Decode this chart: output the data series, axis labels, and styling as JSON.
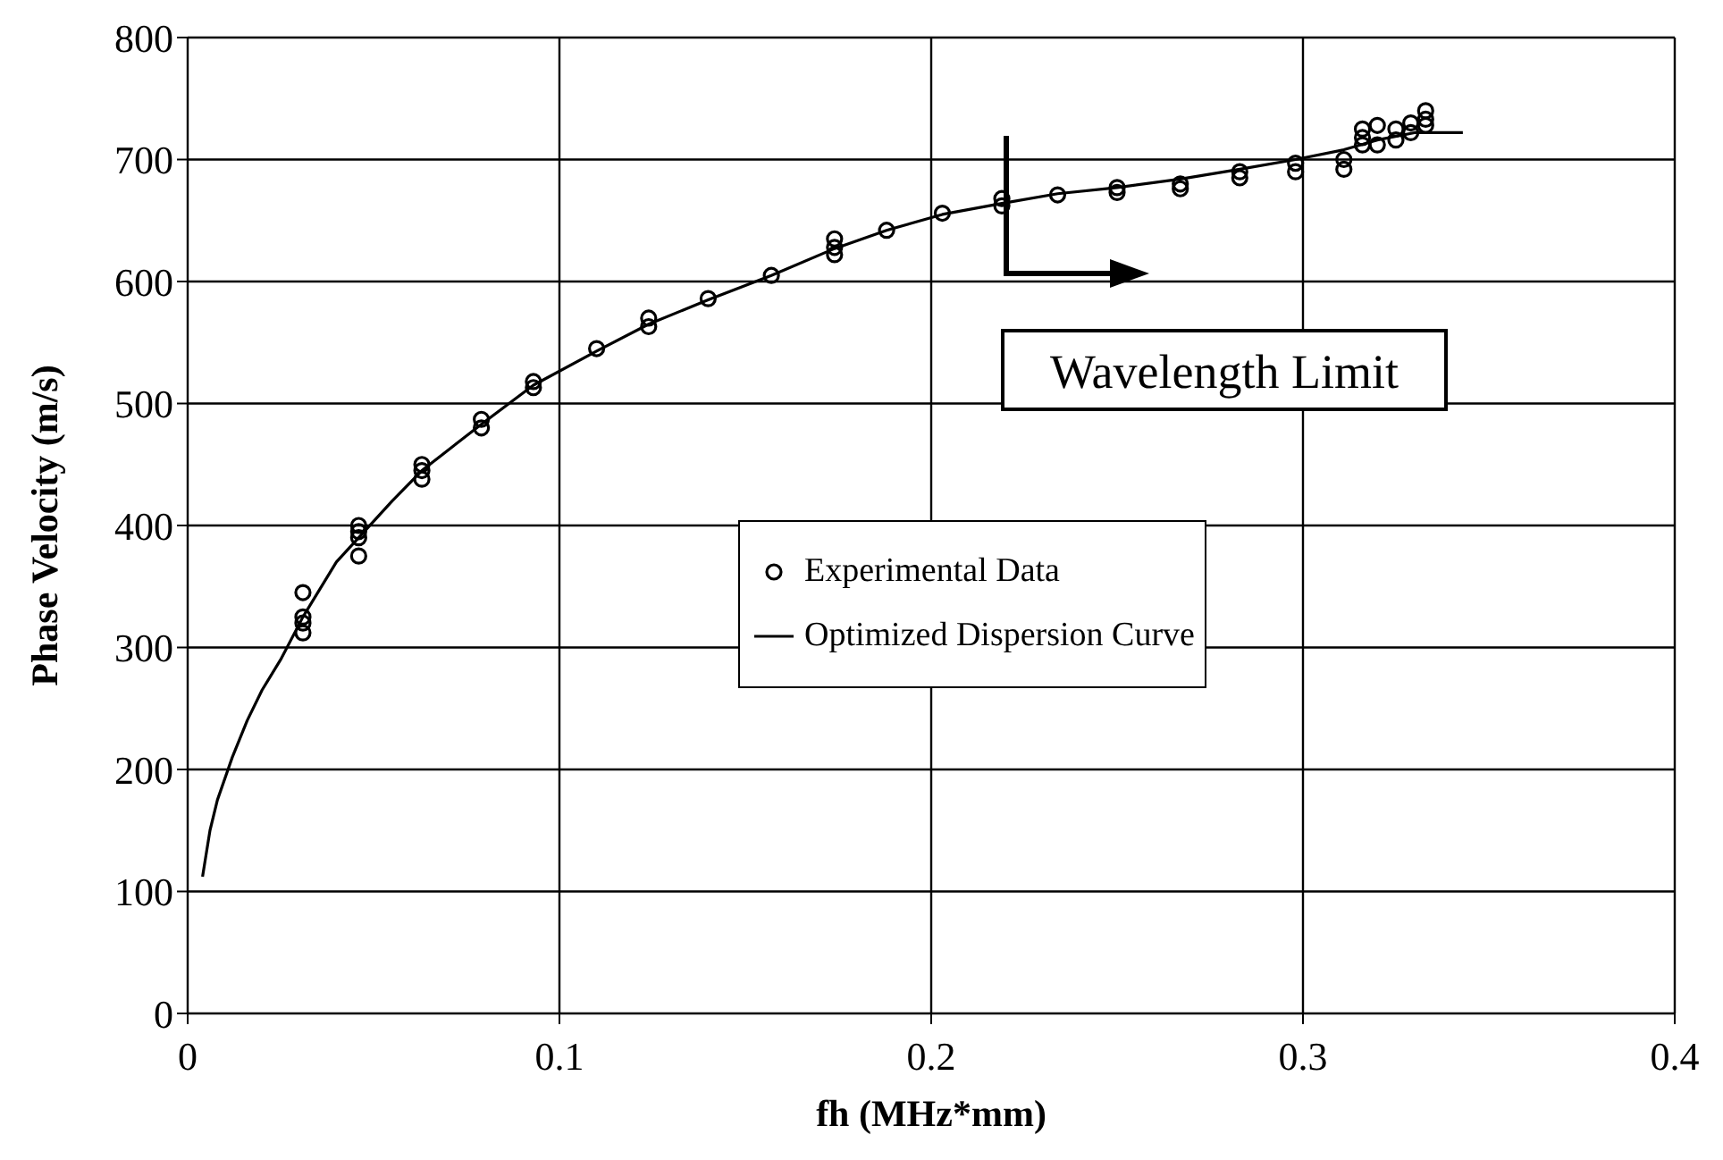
{
  "chart_data": {
    "type": "scatter",
    "xlabel": "fh (MHz*mm)",
    "ylabel": "Phase Velocity (m/s)",
    "xlim": [
      0,
      0.4
    ],
    "xticks": [
      0,
      0.1,
      0.2,
      0.3,
      0.4
    ],
    "ylim": [
      0,
      800
    ],
    "yticks": [
      0,
      100,
      200,
      300,
      400,
      500,
      600,
      700,
      800
    ],
    "grid": true,
    "legend": "center",
    "series": [
      {
        "name": "Experimental Data",
        "marker": "circle",
        "color": "#000000",
        "x": [
          0.031,
          0.031,
          0.031,
          0.031,
          0.046,
          0.046,
          0.046,
          0.046,
          0.063,
          0.063,
          0.063,
          0.079,
          0.079,
          0.093,
          0.093,
          0.11,
          0.124,
          0.124,
          0.14,
          0.157,
          0.174,
          0.174,
          0.174,
          0.188,
          0.203,
          0.219,
          0.219,
          0.234,
          0.25,
          0.25,
          0.267,
          0.267,
          0.283,
          0.283,
          0.298,
          0.298,
          0.311,
          0.311,
          0.316,
          0.316,
          0.316,
          0.32,
          0.32,
          0.325,
          0.325,
          0.329,
          0.329,
          0.333,
          0.333,
          0.333
        ],
        "values": [
          345,
          325,
          320,
          312,
          400,
          395,
          390,
          375,
          450,
          445,
          438,
          487,
          480,
          518,
          513,
          545,
          570,
          563,
          586,
          605,
          635,
          628,
          622,
          642,
          656,
          668,
          662,
          671,
          677,
          673,
          680,
          676,
          690,
          685,
          697,
          690,
          700,
          692,
          725,
          718,
          712,
          728,
          712,
          725,
          716,
          730,
          722,
          740,
          733,
          728
        ]
      },
      {
        "name": "Optimized Dispersion Curve",
        "type": "line",
        "marker": "none",
        "line_style": "solid",
        "color": "#000000",
        "x": [
          0.004,
          0.006,
          0.008,
          0.012,
          0.016,
          0.02,
          0.025,
          0.031,
          0.04,
          0.046,
          0.055,
          0.063,
          0.079,
          0.093,
          0.11,
          0.124,
          0.14,
          0.157,
          0.174,
          0.188,
          0.203,
          0.219,
          0.234,
          0.25,
          0.267,
          0.283,
          0.298,
          0.311,
          0.32,
          0.33,
          0.343
        ],
        "values": [
          112,
          150,
          175,
          210,
          240,
          265,
          290,
          325,
          370,
          390,
          420,
          445,
          483,
          515,
          543,
          565,
          585,
          605,
          627,
          642,
          655,
          664,
          672,
          677,
          684,
          692,
          700,
          708,
          716,
          722,
          722
        ]
      }
    ],
    "annotations": [
      "Wavelength Limit"
    ]
  }
}
